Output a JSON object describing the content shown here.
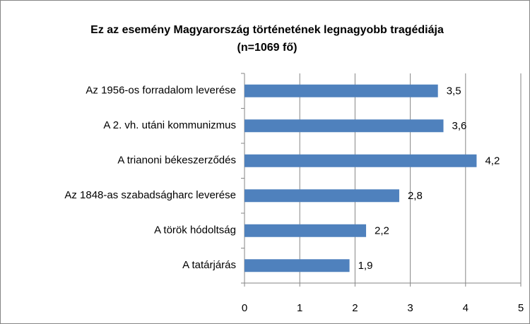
{
  "chart_data": {
    "type": "hbar",
    "title": "Ez az esemény Magyarország történetének legnagyobb tragédiája",
    "subtitle": "(n=1069 fő)",
    "categories": [
      "Az 1956-os forradalom leverése",
      "A 2. vh. utáni kommunizmus",
      "A trianoni békeszerződés",
      "Az 1848-as szabadságharc leverése",
      "A török hódoltság",
      "A tatárjárás"
    ],
    "values": [
      3.5,
      3.6,
      4.2,
      2.8,
      2.2,
      1.9
    ],
    "value_labels": [
      "3,5",
      "3,6",
      "4,2",
      "2,8",
      "2,2",
      "1,9"
    ],
    "color": "#4f81bd",
    "xlim": [
      0,
      5
    ],
    "xticks": [
      0,
      1,
      2,
      3,
      4,
      5
    ],
    "grid": true
  }
}
